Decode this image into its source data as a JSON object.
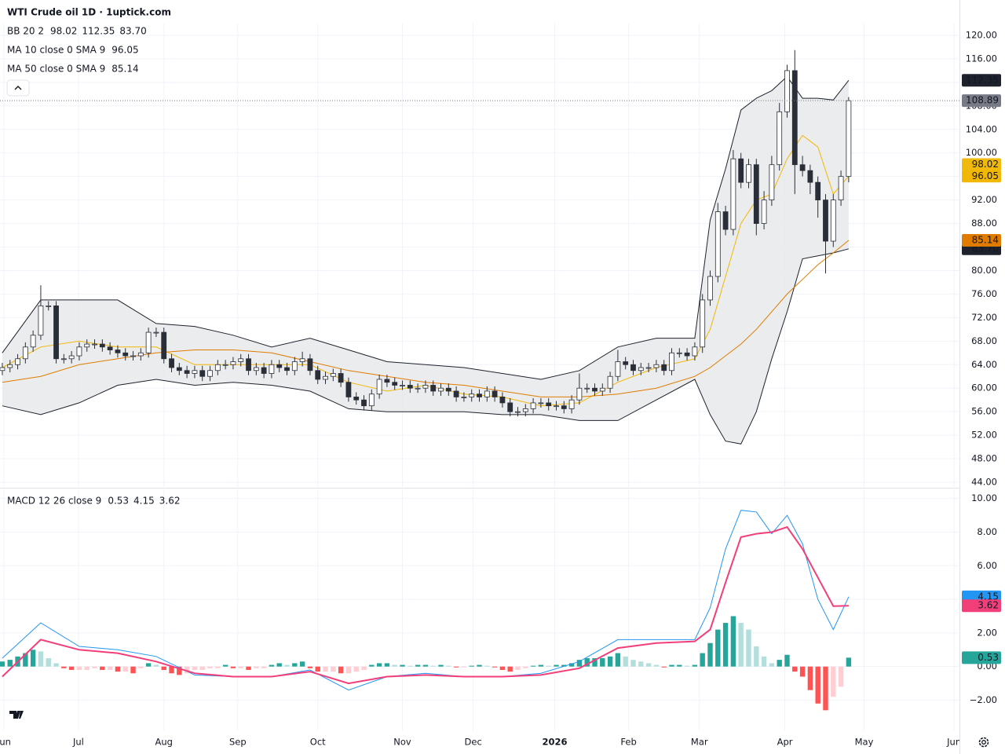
{
  "chart_data": [
    {
      "type": "candlestick",
      "title": "WTI Crude oil  1D · 1uptick.com",
      "x": [
        0,
        1,
        2,
        3,
        4,
        5,
        6,
        7,
        8,
        9,
        10,
        11,
        12,
        13,
        14,
        15,
        16,
        17,
        18,
        19,
        20,
        21,
        22,
        23,
        24,
        25,
        26,
        27,
        28,
        29,
        30,
        31,
        32,
        33,
        34,
        35,
        36,
        37,
        38,
        39,
        40,
        41,
        42,
        43,
        44,
        45,
        46,
        47,
        48,
        49,
        50,
        51,
        52,
        53,
        54,
        55,
        56,
        57,
        58,
        59,
        60,
        61,
        62,
        63,
        64,
        65,
        66,
        67,
        68,
        69,
        70,
        71,
        72,
        73,
        74,
        75,
        76,
        77,
        78,
        79,
        80,
        81,
        82,
        83,
        84,
        85,
        86,
        87,
        88,
        89,
        90,
        91,
        92,
        93,
        94,
        95,
        96,
        97,
        98,
        99,
        100,
        101,
        102,
        103,
        104,
        105,
        106,
        107,
        108,
        109,
        110
      ],
      "open": [
        63,
        63.5,
        64,
        65,
        67,
        69,
        74,
        74,
        65,
        65,
        65.5,
        67,
        67.5,
        67.5,
        67,
        66.5,
        66,
        65.5,
        65.5,
        66,
        69.5,
        69.5,
        65,
        63.5,
        63,
        62.5,
        63,
        62,
        63,
        64,
        64,
        64.5,
        65,
        63,
        63.5,
        62.5,
        64,
        63.5,
        63,
        64.5,
        65,
        63,
        61.5,
        62,
        62.5,
        61,
        58.5,
        58,
        57,
        59,
        61.5,
        61,
        60.5,
        60.5,
        60,
        60,
        60.5,
        59.5,
        60,
        59.5,
        58.5,
        58.5,
        59,
        58.5,
        59.5,
        58.5,
        57.5,
        56,
        56,
        56.5,
        57.5,
        57.5,
        57,
        57,
        56.5,
        58,
        60,
        60,
        59.5,
        60,
        62,
        64.5,
        64,
        63,
        63.5,
        63.5,
        64,
        63,
        66,
        66,
        65.5,
        67,
        75,
        79,
        90,
        87,
        99,
        95,
        98,
        88,
        92,
        98,
        107,
        114,
        98,
        97,
        95,
        92,
        85,
        92,
        96
      ],
      "high": [
        64.3,
        64.8,
        65.8,
        67.8,
        69.8,
        77.5,
        74.8,
        74.8,
        65.8,
        66.3,
        67.8,
        68.3,
        68.3,
        68.3,
        67.8,
        67.3,
        66.8,
        66.3,
        66.8,
        70.3,
        70.3,
        70.3,
        65.8,
        64.3,
        63.8,
        63.8,
        63.8,
        63.8,
        64.8,
        64.8,
        65.3,
        65.8,
        65.8,
        64.3,
        64.3,
        64.8,
        64.8,
        64.3,
        65.3,
        66.2,
        65.8,
        63.8,
        62.8,
        63.3,
        63.3,
        61.8,
        59.3,
        58.8,
        59.8,
        62.3,
        62.3,
        61.8,
        61.3,
        61.3,
        60.8,
        61.3,
        61.3,
        60.8,
        60.8,
        60.3,
        59.3,
        59.8,
        59.8,
        60.3,
        60.3,
        59.3,
        58.3,
        56.8,
        57.3,
        58.3,
        58.3,
        58.3,
        57.8,
        57.8,
        58.8,
        62.5,
        60.8,
        60.8,
        60.8,
        62.8,
        66.5,
        65.3,
        64.8,
        64.3,
        64.3,
        64.8,
        64.8,
        66.8,
        66.8,
        66.8,
        67.8,
        76,
        80,
        91.5,
        91,
        100.5,
        100,
        99,
        99,
        93.5,
        99.5,
        108.5,
        115,
        117.5,
        99.5,
        98,
        96,
        93,
        93,
        97,
        109.5
      ],
      "low": [
        62.2,
        62.7,
        63.2,
        64.2,
        66.2,
        68.2,
        73.2,
        64.2,
        64.2,
        64.2,
        64.7,
        66.2,
        66.7,
        66.2,
        65.7,
        65.2,
        64.7,
        64.7,
        64.7,
        65.2,
        68.7,
        64.2,
        62.7,
        62.2,
        61.7,
        61.7,
        61.2,
        61.2,
        62.2,
        63.2,
        63.2,
        63.7,
        62.2,
        62.2,
        61.7,
        61.7,
        62.7,
        62.2,
        62.2,
        63.7,
        62.2,
        60.7,
        60.7,
        61.2,
        60.2,
        57.7,
        57.2,
        56.2,
        56.2,
        58.2,
        60.2,
        59.7,
        59.7,
        59.2,
        59.2,
        59.2,
        58.7,
        58.7,
        58.7,
        57.7,
        57.7,
        57.7,
        57.7,
        57.7,
        57.7,
        56.7,
        55.2,
        55.2,
        55.2,
        55.7,
        56.7,
        56.2,
        56.2,
        55.7,
        55.7,
        57.2,
        59.2,
        58.7,
        58.7,
        59.2,
        61.2,
        63.2,
        62.2,
        62.2,
        62.7,
        62.7,
        62.2,
        62.2,
        65.2,
        64.7,
        64.7,
        66,
        74,
        78,
        86,
        86,
        94,
        94,
        86,
        87,
        91,
        97,
        106,
        93,
        96,
        93,
        89,
        79.5,
        84,
        91,
        95
      ],
      "close": [
        63.5,
        64,
        65,
        67,
        69,
        74,
        74,
        65,
        65,
        65.5,
        67,
        67.5,
        67.5,
        67,
        66.5,
        66,
        65.5,
        65.5,
        66,
        69.5,
        69.5,
        65,
        63.5,
        63,
        62.5,
        63,
        62,
        63,
        64,
        64,
        64.5,
        65,
        63,
        63.5,
        62.5,
        64,
        63.5,
        63,
        64.5,
        65,
        63,
        61.5,
        62,
        62.5,
        61,
        58.5,
        58,
        57,
        59,
        61.5,
        61,
        60.5,
        60.5,
        60,
        60,
        60.5,
        59.5,
        60,
        59.5,
        58.5,
        58.5,
        59,
        58.5,
        59.5,
        58.5,
        57.5,
        56,
        56,
        56.5,
        57.5,
        57.5,
        57,
        57,
        56.5,
        58,
        60,
        60,
        59.5,
        60,
        62,
        64.5,
        64,
        63,
        63.5,
        63.5,
        64,
        63,
        66,
        66,
        65.5,
        67,
        75,
        79,
        90,
        87,
        99,
        95,
        98,
        88,
        92,
        98,
        107,
        114,
        98,
        97,
        95,
        92,
        85,
        92,
        96,
        108.89
      ],
      "up_color": "#ffffff",
      "down_color": "#2a2e39",
      "wick_color": "#2a2e39",
      "last_color": "#787b86",
      "line_x": [
        0,
        5,
        10,
        15,
        20,
        25,
        30,
        35,
        40,
        45,
        50,
        55,
        60,
        65,
        70,
        75,
        80,
        85,
        90,
        92,
        94,
        96,
        98,
        100,
        102,
        104,
        106,
        108,
        110
      ],
      "band_fill": "#e6e7e9",
      "overlays": [
        {
          "color": "#1e222d",
          "values": [
            66,
            75,
            75,
            75,
            71,
            70.5,
            69,
            67,
            68.5,
            66.5,
            64.5,
            64,
            63.5,
            62.5,
            61.5,
            63,
            67,
            68.5,
            68.5,
            88.6,
            97.3,
            107.3,
            109.3,
            110.6,
            113,
            109.3,
            109.3,
            109,
            112.35
          ]
        },
        {
          "color": "#1e222d",
          "values": [
            57,
            55.5,
            57.5,
            60.5,
            61.5,
            60.5,
            61,
            60.5,
            59.5,
            56.5,
            56,
            56,
            56,
            55.5,
            55.5,
            54.5,
            54.5,
            58,
            61.5,
            55.5,
            51,
            50.5,
            56,
            65,
            73,
            82,
            82.5,
            83,
            83.7
          ]
        },
        {
          "color": "#f2b705",
          "values": [
            63.5,
            67,
            68,
            67,
            67,
            64,
            64,
            64,
            64,
            61,
            59.5,
            60.5,
            59,
            58.5,
            57,
            57.5,
            61,
            63.5,
            65,
            70,
            79,
            88,
            92,
            93,
            99,
            103,
            101,
            93,
            96.05
          ]
        },
        {
          "color": "#e07b00",
          "values": [
            61,
            62,
            64,
            65,
            66,
            66.5,
            66.5,
            66,
            64.5,
            63,
            62,
            61,
            60.5,
            59.5,
            58.5,
            58.5,
            59,
            60,
            62,
            63.5,
            65.5,
            67.5,
            70,
            73,
            76,
            78.5,
            81,
            83,
            85.14
          ]
        }
      ],
      "legend": [
        {
          "label": "BB 20 2",
          "values": [
            "98.02",
            "112.35",
            "83.70"
          ],
          "colors": [
            "#f0b90b",
            "#1e222d",
            "#1e222d"
          ]
        },
        {
          "label": "MA 10 close 0 SMA 9",
          "values": [
            "96.05"
          ],
          "colors": [
            "#f2b705"
          ]
        },
        {
          "label": "MA 50 close 0 SMA 9",
          "values": [
            "85.14"
          ],
          "colors": [
            "#e07b00"
          ]
        }
      ],
      "xlim": [
        -0.3,
        124.4
      ],
      "ylim": [
        43.2,
        122.0
      ],
      "yticks": [
        {
          "value": 44,
          "label": "44.00"
        },
        {
          "value": 48,
          "label": "48.00"
        },
        {
          "value": 52,
          "label": "52.00"
        },
        {
          "value": 56,
          "label": "56.00"
        },
        {
          "value": 60,
          "label": "60.00"
        },
        {
          "value": 64,
          "label": "64.00"
        },
        {
          "value": 68,
          "label": "68.00"
        },
        {
          "value": 72,
          "label": "72.00"
        },
        {
          "value": 76,
          "label": "76.00"
        },
        {
          "value": 80,
          "label": "80.00"
        },
        {
          "value": 84,
          "label": "84.00"
        },
        {
          "value": 88,
          "label": "88.00"
        },
        {
          "value": 92,
          "label": "92.00"
        },
        {
          "value": 96,
          "label": "96.00"
        },
        {
          "value": 100,
          "label": "100.00"
        },
        {
          "value": 104,
          "label": "104.00"
        },
        {
          "value": 108,
          "label": "108.00"
        },
        {
          "value": 112,
          "label": "112.00"
        },
        {
          "value": 116,
          "label": "116.00"
        },
        {
          "value": 120,
          "label": "120.00"
        }
      ],
      "grid": true
    },
    {
      "type": "line",
      "legend": {
        "label": "MACD 12 26 close 9",
        "values": [
          "0.53",
          "4.15",
          "3.62"
        ],
        "colors": [
          "#26a69a",
          "#2196f3",
          "#f23f7a"
        ]
      },
      "series": [
        {
          "color": "#2196f3",
          "values": [
            0.5,
            2.6,
            1.2,
            1.0,
            0.6,
            -0.5,
            -0.6,
            -0.6,
            -0.2,
            -1.4,
            -0.6,
            -0.4,
            -0.6,
            -0.6,
            -0.4,
            0.3,
            1.6,
            1.6,
            1.6,
            3.5,
            7,
            9.3,
            9.2,
            7.9,
            9.0,
            7.3,
            4,
            2.2,
            4.15
          ]
        },
        {
          "color": "#f23f7a",
          "values": [
            -0.6,
            1.6,
            1.0,
            0.8,
            0.3,
            -0.4,
            -0.6,
            -0.6,
            -0.3,
            -1.0,
            -0.6,
            -0.5,
            -0.6,
            -0.6,
            -0.5,
            -0.1,
            1.1,
            1.4,
            1.5,
            2.2,
            5,
            7.7,
            7.9,
            8.0,
            8.3,
            7.0,
            5.3,
            3.6,
            3.62
          ]
        }
      ],
      "histogram": [
        0.3,
        0.4,
        0.6,
        0.8,
        1.0,
        0.9,
        0.5,
        0.2,
        -0.1,
        -0.2,
        -0.2,
        -0.2,
        -0.1,
        -0.2,
        -0.2,
        -0.3,
        -0.3,
        -0.4,
        -0.1,
        0.2,
        0.1,
        -0.2,
        -0.4,
        -0.5,
        -0.4,
        -0.2,
        -0.2,
        -0.1,
        -0.1,
        0.1,
        -0.1,
        -0.1,
        -0.2,
        -0.1,
        -0.1,
        0.1,
        0.2,
        0.1,
        0.2,
        0.3,
        -0.1,
        -0.3,
        -0.3,
        -0.3,
        -0.4,
        -0.4,
        -0.3,
        -0.2,
        0.1,
        0.2,
        0.2,
        0.1,
        0.1,
        0.05,
        0.1,
        0.1,
        0.05,
        0.1,
        0.05,
        -0.05,
        -0.05,
        0.05,
        0.1,
        0.05,
        -0.05,
        -0.2,
        -0.3,
        -0.2,
        -0.1,
        0.05,
        0.1,
        0.05,
        0.1,
        0.1,
        0.2,
        0.4,
        0.5,
        0.5,
        0.5,
        0.6,
        0.8,
        0.6,
        0.4,
        0.3,
        0.2,
        0.1,
        -0.05,
        0.1,
        0.1,
        0.05,
        0.1,
        0.8,
        1.4,
        2.2,
        2.6,
        3.0,
        2.6,
        2.2,
        1.2,
        0.6,
        0.2,
        0.4,
        0.7,
        -0.3,
        -0.6,
        -1.4,
        -2.2,
        -2.6,
        -1.8,
        -1.2,
        0.53
      ],
      "hist_colors": [
        "#26a69a",
        "#b2dfdb",
        "#ffcdd2",
        "#ff5252"
      ],
      "xlim": [
        -0.3,
        124.4
      ],
      "ylim": [
        -3.8,
        10.5
      ],
      "xticks": [
        {
          "value": 0.2,
          "label": "Jun"
        },
        {
          "value": 9.9,
          "label": "Jul"
        },
        {
          "value": 21,
          "label": "Aug"
        },
        {
          "value": 30.6,
          "label": "Sep"
        },
        {
          "value": 41,
          "label": "Oct"
        },
        {
          "value": 52,
          "label": "Nov"
        },
        {
          "value": 61.2,
          "label": "Dec"
        },
        {
          "value": 71.8,
          "label": "2026"
        },
        {
          "value": 81.4,
          "label": "Feb"
        },
        {
          "value": 90.6,
          "label": "Mar"
        },
        {
          "value": 101.7,
          "label": "Apr"
        },
        {
          "value": 112,
          "label": "May"
        },
        {
          "value": 123.7,
          "label": "Jun"
        }
      ],
      "yticks": [
        {
          "value": -2,
          "label": "−2.00"
        },
        {
          "value": 0,
          "label": "0.00"
        },
        {
          "value": 2,
          "label": "2.00"
        },
        {
          "value": 4,
          "label": "4.00"
        },
        {
          "value": 6,
          "label": "6.00"
        },
        {
          "value": 8,
          "label": "8.00"
        },
        {
          "value": 10,
          "label": "10.00"
        }
      ],
      "grid": true
    }
  ]
}
